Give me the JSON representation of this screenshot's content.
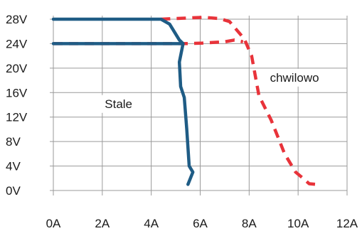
{
  "chart_data": {
    "type": "line",
    "title": "",
    "xlabel": "",
    "ylabel": "",
    "xlim": [
      0,
      12
    ],
    "ylim": [
      0,
      28
    ],
    "x_ticks": [
      0,
      2,
      4,
      6,
      8,
      10,
      12
    ],
    "y_ticks": [
      0,
      4,
      8,
      12,
      16,
      20,
      24,
      28
    ],
    "x_tick_labels": [
      "0A",
      "2A",
      "4A",
      "6A",
      "8A",
      "10A",
      "12A"
    ],
    "y_tick_labels": [
      "0V",
      "4V",
      "8V",
      "12V",
      "16V",
      "20V",
      "24V",
      "28V"
    ],
    "grid": true,
    "series": [
      {
        "name": "",
        "style": "solid",
        "color": "#1f5c85",
        "points": [
          [
            0,
            28
          ],
          [
            4.4,
            28
          ],
          [
            4.75,
            27.2
          ],
          [
            5.15,
            24.6
          ],
          [
            5.3,
            24
          ],
          [
            5.15,
            21
          ],
          [
            5.2,
            17
          ],
          [
            5.35,
            15.2
          ],
          [
            5.45,
            10
          ],
          [
            5.55,
            4
          ],
          [
            5.7,
            3
          ],
          [
            5.5,
            1
          ]
        ]
      },
      {
        "name": "",
        "style": "solid",
        "color": "#1f5c85",
        "points": [
          [
            0,
            24
          ],
          [
            5.3,
            24
          ]
        ]
      },
      {
        "name": "",
        "style": "dashed",
        "color": "#e8333a",
        "points": [
          [
            4.4,
            28
          ],
          [
            6.1,
            28.3
          ],
          [
            6.8,
            28.1
          ],
          [
            7.2,
            27.6
          ],
          [
            7.8,
            24.8
          ],
          [
            8.1,
            22
          ],
          [
            8.4,
            15.5
          ],
          [
            8.9,
            11.5
          ],
          [
            9.45,
            6
          ],
          [
            9.9,
            3
          ],
          [
            10.2,
            2
          ],
          [
            10.45,
            1.1
          ],
          [
            10.75,
            1
          ]
        ]
      },
      {
        "name": "",
        "style": "dashed",
        "color": "#e8333a",
        "points": [
          [
            0,
            24
          ],
          [
            5.3,
            24
          ],
          [
            6.1,
            24.1
          ],
          [
            7.0,
            24.3
          ],
          [
            7.4,
            24.6
          ],
          [
            7.75,
            24.3
          ]
        ]
      }
    ],
    "annotations": [
      {
        "text": "Stale",
        "x": 2.1,
        "y": 13.5
      },
      {
        "text": "chwilowo",
        "x": 8.85,
        "y": 17.8
      }
    ]
  }
}
